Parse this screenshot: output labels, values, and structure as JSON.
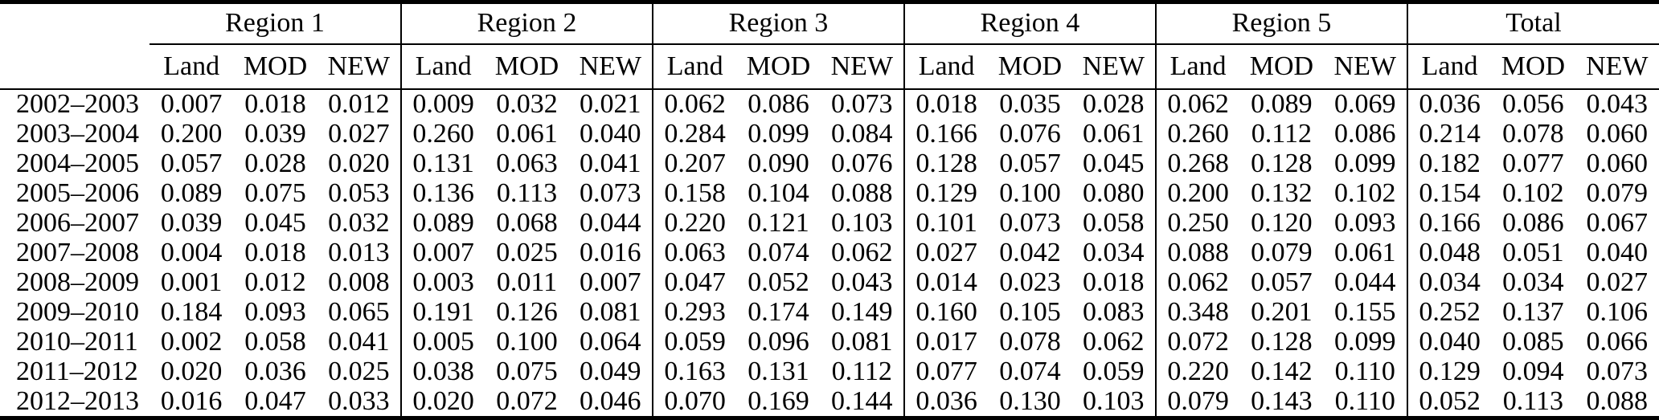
{
  "page": {
    "background_color": "#ffffff",
    "text_color": "#000000",
    "rule_color": "#000000"
  },
  "table": {
    "corner_label": "",
    "groups": [
      {
        "label": "Region 1"
      },
      {
        "label": "Region 2"
      },
      {
        "label": "Region 3"
      },
      {
        "label": "Region 4"
      },
      {
        "label": "Region 5"
      },
      {
        "label": "Total"
      }
    ],
    "sub_columns": [
      "Land",
      "MOD",
      "NEW"
    ],
    "rows": [
      {
        "period": "2002–2003",
        "values": [
          "0.007",
          "0.018",
          "0.012",
          "0.009",
          "0.032",
          "0.021",
          "0.062",
          "0.086",
          "0.073",
          "0.018",
          "0.035",
          "0.028",
          "0.062",
          "0.089",
          "0.069",
          "0.036",
          "0.056",
          "0.043"
        ]
      },
      {
        "period": "2003–2004",
        "values": [
          "0.200",
          "0.039",
          "0.027",
          "0.260",
          "0.061",
          "0.040",
          "0.284",
          "0.099",
          "0.084",
          "0.166",
          "0.076",
          "0.061",
          "0.260",
          "0.112",
          "0.086",
          "0.214",
          "0.078",
          "0.060"
        ]
      },
      {
        "period": "2004–2005",
        "values": [
          "0.057",
          "0.028",
          "0.020",
          "0.131",
          "0.063",
          "0.041",
          "0.207",
          "0.090",
          "0.076",
          "0.128",
          "0.057",
          "0.045",
          "0.268",
          "0.128",
          "0.099",
          "0.182",
          "0.077",
          "0.060"
        ]
      },
      {
        "period": "2005–2006",
        "values": [
          "0.089",
          "0.075",
          "0.053",
          "0.136",
          "0.113",
          "0.073",
          "0.158",
          "0.104",
          "0.088",
          "0.129",
          "0.100",
          "0.080",
          "0.200",
          "0.132",
          "0.102",
          "0.154",
          "0.102",
          "0.079"
        ]
      },
      {
        "period": "2006–2007",
        "values": [
          "0.039",
          "0.045",
          "0.032",
          "0.089",
          "0.068",
          "0.044",
          "0.220",
          "0.121",
          "0.103",
          "0.101",
          "0.073",
          "0.058",
          "0.250",
          "0.120",
          "0.093",
          "0.166",
          "0.086",
          "0.067"
        ]
      },
      {
        "period": "2007–2008",
        "values": [
          "0.004",
          "0.018",
          "0.013",
          "0.007",
          "0.025",
          "0.016",
          "0.063",
          "0.074",
          "0.062",
          "0.027",
          "0.042",
          "0.034",
          "0.088",
          "0.079",
          "0.061",
          "0.048",
          "0.051",
          "0.040"
        ]
      },
      {
        "period": "2008–2009",
        "values": [
          "0.001",
          "0.012",
          "0.008",
          "0.003",
          "0.011",
          "0.007",
          "0.047",
          "0.052",
          "0.043",
          "0.014",
          "0.023",
          "0.018",
          "0.062",
          "0.057",
          "0.044",
          "0.034",
          "0.034",
          "0.027"
        ]
      },
      {
        "period": "2009–2010",
        "values": [
          "0.184",
          "0.093",
          "0.065",
          "0.191",
          "0.126",
          "0.081",
          "0.293",
          "0.174",
          "0.149",
          "0.160",
          "0.105",
          "0.083",
          "0.348",
          "0.201",
          "0.155",
          "0.252",
          "0.137",
          "0.106"
        ]
      },
      {
        "period": "2010–2011",
        "values": [
          "0.002",
          "0.058",
          "0.041",
          "0.005",
          "0.100",
          "0.064",
          "0.059",
          "0.096",
          "0.081",
          "0.017",
          "0.078",
          "0.062",
          "0.072",
          "0.128",
          "0.099",
          "0.040",
          "0.085",
          "0.066"
        ]
      },
      {
        "period": "2011–2012",
        "values": [
          "0.020",
          "0.036",
          "0.025",
          "0.038",
          "0.075",
          "0.049",
          "0.163",
          "0.131",
          "0.112",
          "0.077",
          "0.074",
          "0.059",
          "0.220",
          "0.142",
          "0.110",
          "0.129",
          "0.094",
          "0.073"
        ]
      },
      {
        "period": "2012–2013",
        "values": [
          "0.016",
          "0.047",
          "0.033",
          "0.020",
          "0.072",
          "0.046",
          "0.070",
          "0.169",
          "0.144",
          "0.036",
          "0.130",
          "0.103",
          "0.079",
          "0.143",
          "0.110",
          "0.052",
          "0.113",
          "0.088"
        ]
      }
    ]
  }
}
